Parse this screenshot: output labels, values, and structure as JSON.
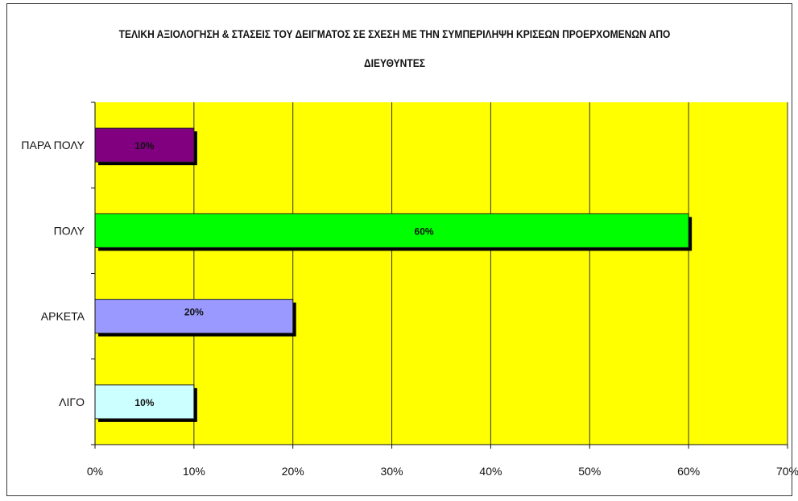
{
  "chart_data": {
    "type": "bar",
    "orientation": "horizontal",
    "title": "ΤΕΛΙΚΗ ΑΞΙΟΛΟΓΗΣΗ & ΣΤΑΣΕΙΣ ΤΟΥ ΔΕΙΓΜΑΤΟΣ ΣΕ ΣΧΕΣΗ ΜΕ ΤΗΝ ΣΥΜΠΕΡΙΛΗΨΗ ΚΡΙΣΕΩΝ ΠΡΟΕΡΧΟΜΕΝΩΝ ΑΠΟ ΔΙΕΥΘΥΝΤΕΣ",
    "categories": [
      "ΠΑΡΑ ΠΟΛΥ",
      "ΠΟΛΥ",
      "ΑΡΚΕΤΑ",
      "ΛΙΓΟ"
    ],
    "values": [
      10,
      60,
      20,
      10
    ],
    "data_labels": [
      "10%",
      "60%",
      "20%",
      "10%"
    ],
    "bar_colors": [
      "#800080",
      "#00ff00",
      "#9999ff",
      "#ccffff"
    ],
    "xlim": [
      0,
      70
    ],
    "x_ticks": [
      0,
      10,
      20,
      30,
      40,
      50,
      60,
      70
    ],
    "x_tick_labels": [
      "0%",
      "10%",
      "20%",
      "30%",
      "40%",
      "50%",
      "60%",
      "70%"
    ],
    "plot_background": "#ffff00",
    "grid": true,
    "legend": "none"
  }
}
